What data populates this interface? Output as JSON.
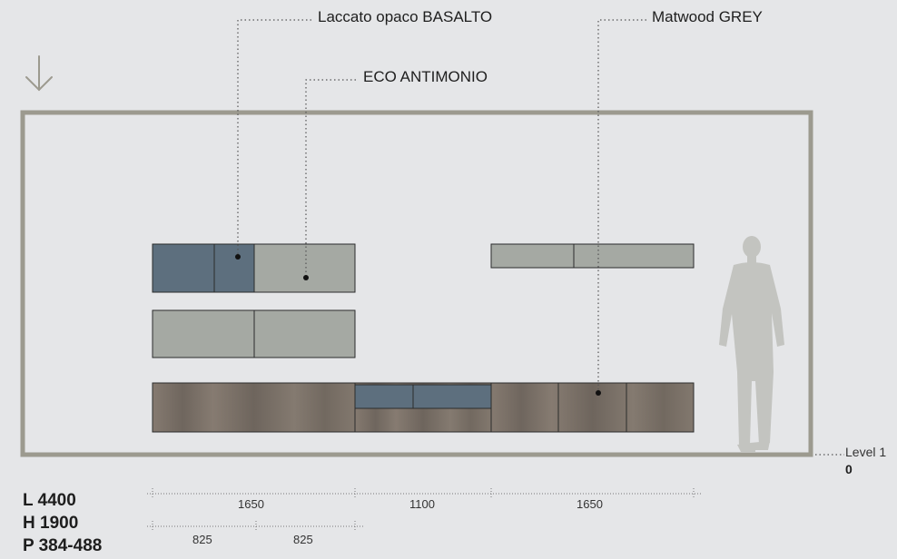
{
  "callouts": {
    "basalto": "Laccato opaco BASALTO",
    "antimonio": "ECO ANTIMONIO",
    "matwood": "Matwood GREY"
  },
  "level": {
    "label": "Level 1",
    "value": "0"
  },
  "specs": {
    "length": "L 4400",
    "height": "H 1900",
    "depth": "P 384-488"
  },
  "dimensions": {
    "top": [
      "1650",
      "1100",
      "1650"
    ],
    "bottom": [
      "825",
      "825"
    ]
  },
  "colors": {
    "background": "#e5e6e8",
    "frame": "#9c9a8f",
    "basalto": "#5d6f7e",
    "antimonio": "#a5a9a3",
    "matwood": "#7a7068",
    "silhouette": "#c3c4c0"
  },
  "icons": {
    "arrow": "arrow-down-icon"
  }
}
